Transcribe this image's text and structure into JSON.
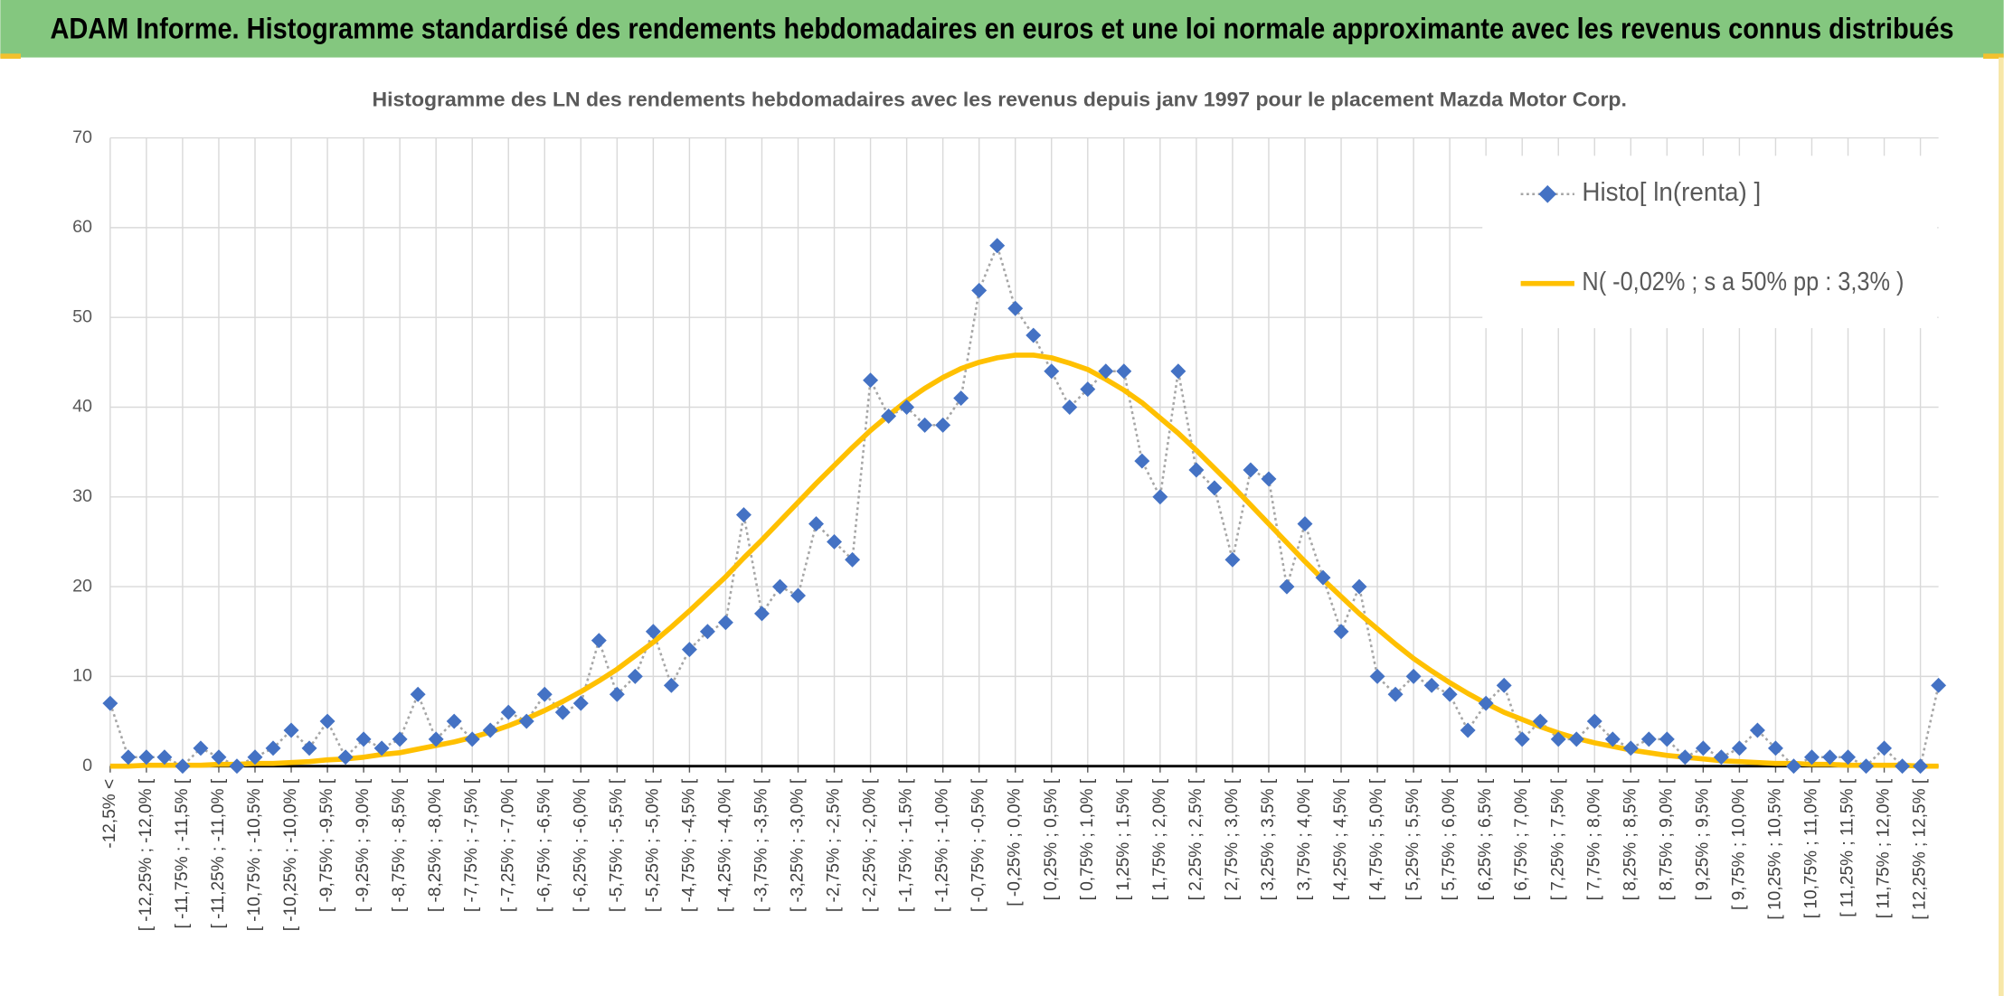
{
  "header": {
    "title": "ADAM Informe. Histogramme standardisé des rendements hebdomadaires en euros et une loi normale approximante avec les revenus connus distribués"
  },
  "chart_data": {
    "type": "line",
    "title": "Histogramme des LN des rendements hebdomadaires avec les revenus depuis janv 1997 pour le placement Mazda Motor Corp.",
    "categories": [
      "-12,5% <",
      null,
      "[ -12,25% ; -12,0% [",
      null,
      "[ -11,75% ; -11,5% [",
      null,
      "[ -11,25% ; -11,0% [",
      null,
      "[ -10,75% ; -10,5% [",
      null,
      "[ -10,25% ; -10,0% [",
      null,
      "[ -9,75% ; -9,5% [",
      null,
      "[ -9,25% ; -9,0% [",
      null,
      "[ -8,75% ; -8,5% [",
      null,
      "[ -8,25% ; -8,0% [",
      null,
      "[ -7,75% ; -7,5% [",
      null,
      "[ -7,25% ; -7,0% [",
      null,
      "[ -6,75% ; -6,5% [",
      null,
      "[ -6,25% ; -6,0% [",
      null,
      "[ -5,75% ; -5,5% [",
      null,
      "[ -5,25% ; -5,0% [",
      null,
      "[ -4,75% ; -4,5% [",
      null,
      "[ -4,25% ; -4,0% [",
      null,
      "[ -3,75% ; -3,5% [",
      null,
      "[ -3,25% ; -3,0% [",
      null,
      "[ -2,75% ; -2,5% [",
      null,
      "[ -2,25% ; -2,0% [",
      null,
      "[ -1,75% ; -1,5% [",
      null,
      "[ -1,25% ; -1,0% [",
      null,
      "[ -0,75% ; -0,5% [",
      null,
      "[ -0,25% ; 0,0% [",
      null,
      "[ 0,25% ; 0,5% [",
      null,
      "[ 0,75% ; 1,0% [",
      null,
      "[ 1,25% ; 1,5% [",
      null,
      "[ 1,75% ; 2,0% [",
      null,
      "[ 2,25% ; 2,5% [",
      null,
      "[ 2,75% ; 3,0% [",
      null,
      "[ 3,25% ; 3,5% [",
      null,
      "[ 3,75% ; 4,0% [",
      null,
      "[ 4,25% ; 4,5% [",
      null,
      "[ 4,75% ; 5,0% [",
      null,
      "[ 5,25% ; 5,5% [",
      null,
      "[ 5,75% ; 6,0% [",
      null,
      "[ 6,25% ; 6,5% [",
      null,
      "[ 6,75% ; 7,0% [",
      null,
      "[ 7,25% ; 7,5% [",
      null,
      "[ 7,75% ; 8,0% [",
      null,
      "[ 8,25% ; 8,5% [",
      null,
      "[ 8,75% ; 9,0% [",
      null,
      "[ 9,25% ; 9,5% [",
      null,
      "[ 9,75% ; 10,0% [",
      null,
      "[ 10,25% ; 10,5% [",
      null,
      "[ 10,75% ; 11,0% [",
      null,
      "[ 11,25% ; 11,5% [",
      null,
      "[ 11,75% ; 12,0% [",
      null,
      "[ 12,25% ; 12,5% [",
      null
    ],
    "series": [
      {
        "name": "Histo[ ln(renta) ]",
        "color": "#4472c4",
        "line_color": "#a6a6a6",
        "values": [
          7,
          1,
          1,
          1,
          0,
          2,
          1,
          0,
          1,
          2,
          4,
          2,
          5,
          1,
          3,
          2,
          3,
          8,
          3,
          5,
          3,
          4,
          6,
          5,
          8,
          6,
          7,
          14,
          8,
          10,
          15,
          9,
          13,
          15,
          16,
          28,
          17,
          20,
          19,
          27,
          25,
          23,
          43,
          39,
          40,
          38,
          38,
          41,
          53,
          58,
          51,
          48,
          44,
          40,
          42,
          44,
          44,
          34,
          30,
          44,
          33,
          31,
          23,
          33,
          32,
          20,
          27,
          21,
          15,
          20,
          10,
          8,
          10,
          9,
          8,
          4,
          7,
          9,
          3,
          5,
          3,
          3,
          5,
          3,
          2,
          3,
          3,
          1,
          2,
          1,
          2,
          4,
          2,
          0,
          1,
          1,
          1,
          0,
          2,
          0,
          0,
          9
        ]
      },
      {
        "name": "N( -0,02% ; s a 50% pp : 3,3% )",
        "color": "#ffc000",
        "values": [
          0.0,
          0.0,
          0.1,
          0.1,
          0.1,
          0.1,
          0.2,
          0.2,
          0.3,
          0.3,
          0.4,
          0.5,
          0.7,
          0.8,
          1.0,
          1.3,
          1.5,
          1.9,
          2.3,
          2.7,
          3.2,
          3.8,
          4.5,
          5.3,
          6.2,
          7.2,
          8.3,
          9.5,
          10.8,
          12.3,
          13.8,
          15.5,
          17.3,
          19.2,
          21.1,
          23.2,
          25.2,
          27.3,
          29.4,
          31.5,
          33.5,
          35.5,
          37.4,
          39.1,
          40.7,
          42.1,
          43.3,
          44.3,
          45.0,
          45.5,
          45.8,
          45.8,
          45.5,
          44.9,
          44.2,
          43.1,
          41.9,
          40.5,
          38.8,
          37.1,
          35.2,
          33.2,
          31.2,
          29.1,
          27.0,
          24.9,
          22.8,
          20.8,
          18.9,
          17.0,
          15.3,
          13.6,
          12.0,
          10.6,
          9.3,
          8.1,
          7.0,
          6.0,
          5.2,
          4.4,
          3.7,
          3.1,
          2.6,
          2.2,
          1.8,
          1.5,
          1.2,
          1.0,
          0.8,
          0.6,
          0.5,
          0.4,
          0.3,
          0.3,
          0.2,
          0.2,
          0.1,
          0.1,
          0.1,
          0.1,
          0.0,
          0.0
        ]
      }
    ],
    "ylim": [
      0,
      70
    ],
    "yticks": [
      0,
      10,
      20,
      30,
      40,
      50,
      60,
      70
    ],
    "grid": true,
    "legend": "top-right"
  }
}
